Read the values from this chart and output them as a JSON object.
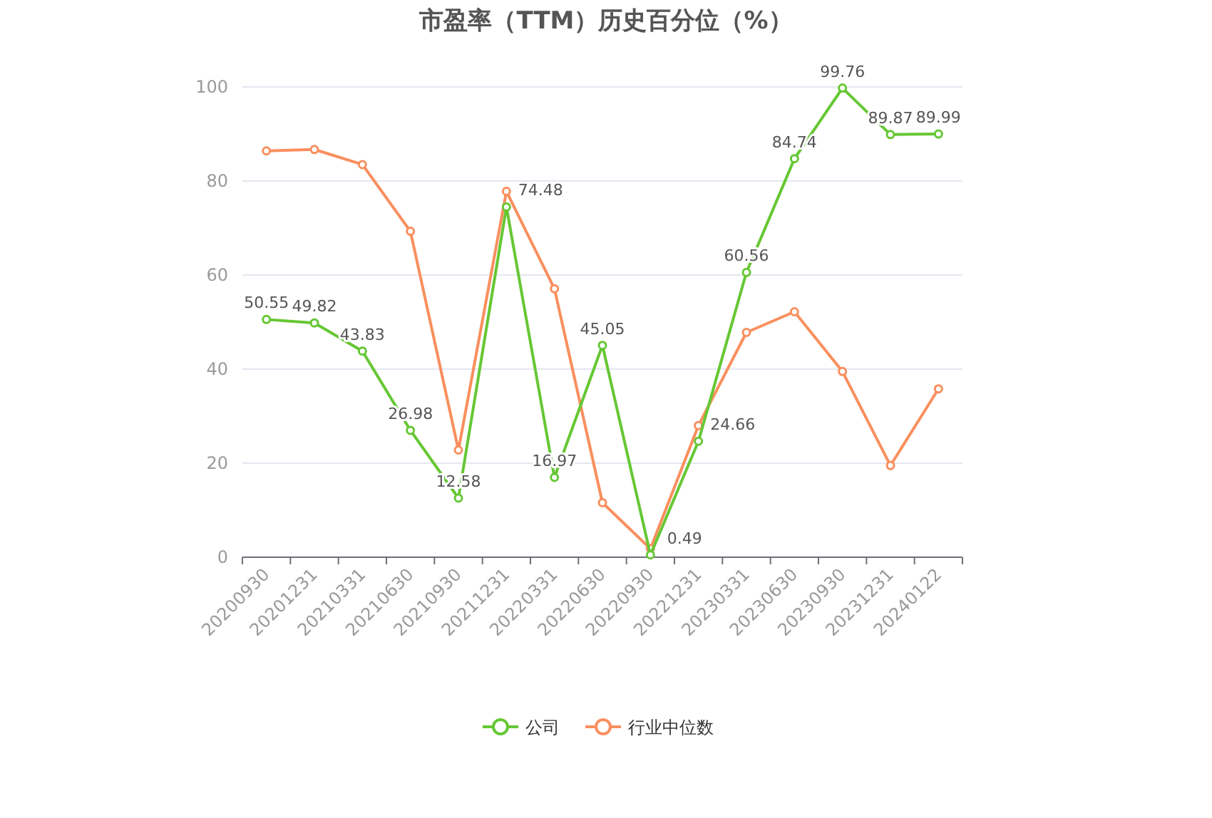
{
  "chart_data": {
    "type": "line",
    "title": "市盈率（TTM）历史百分位（%）",
    "categories": [
      "20200930",
      "20201231",
      "20210331",
      "20210630",
      "20210930",
      "20211231",
      "20220331",
      "20220630",
      "20220930",
      "20221231",
      "20230331",
      "20230630",
      "20230930",
      "20231231",
      "20240122"
    ],
    "series": [
      {
        "name": "公司",
        "color": "#66c734",
        "values": [
          50.55,
          49.82,
          43.83,
          26.98,
          12.58,
          74.48,
          16.97,
          45.05,
          0.49,
          24.66,
          60.56,
          84.74,
          99.76,
          89.87,
          89.99
        ],
        "value_labels": [
          "50.55",
          "49.82",
          "43.83",
          "26.98",
          "12.58",
          "74.48",
          "16.97",
          "45.05",
          "0.49",
          "24.66",
          "60.56",
          "84.74",
          "99.76",
          "89.87",
          "89.99"
        ]
      },
      {
        "name": "行业中位数",
        "color": "#f98f5e",
        "values": [
          86.4,
          86.7,
          83.5,
          69.3,
          22.8,
          77.8,
          57.1,
          11.6,
          1.8,
          28.0,
          47.8,
          52.2,
          39.5,
          19.5,
          35.8
        ]
      }
    ],
    "ylim": [
      0,
      100
    ],
    "yticks": [
      0,
      20,
      40,
      60,
      80,
      100
    ],
    "grid": "y",
    "legend": "bottom",
    "marker": "circle",
    "line_style": "solid"
  }
}
